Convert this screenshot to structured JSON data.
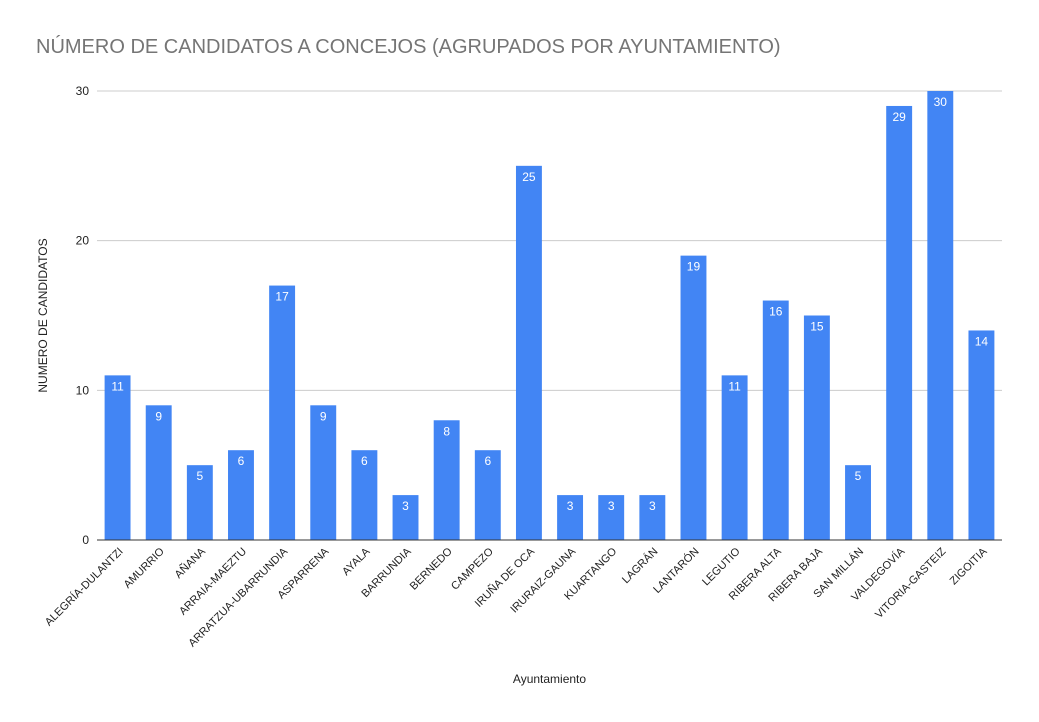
{
  "chart_data": {
    "type": "bar",
    "title": "NÚMERO DE CANDIDATOS A CONCEJOS (AGRUPADOS POR AYUNTAMIENTO)",
    "xlabel": "Ayuntamiento",
    "ylabel": "NUMERO DE CANDIDATOS",
    "ylim": [
      0,
      30
    ],
    "yticks": [
      0,
      10,
      20,
      30
    ],
    "grid": true,
    "bar_color": "#4285f4",
    "categories": [
      "ALEGRÍA-DULANTZI",
      "AMURRIO",
      "AÑANA",
      "ARRAIA-MAEZTU",
      "ARRATZUA-UBARRUNDIA",
      "ASPARRENA",
      "AYALA",
      "BARRUNDIA",
      "BERNEDO",
      "CAMPEZO",
      "IRUÑA DE OCA",
      "IRURAIZ-GAUNA",
      "KUARTANGO",
      "LAGRÁN",
      "LANTARÓN",
      "LEGUTIO",
      "RIBERA ALTA",
      "RIBERA BAJA",
      "SAN MILLÁN",
      "VALDEGOVÍA",
      "VITORIA-GASTEIZ",
      "ZIGOITIA"
    ],
    "values": [
      11,
      9,
      5,
      6,
      17,
      9,
      6,
      3,
      8,
      6,
      25,
      3,
      3,
      3,
      19,
      11,
      16,
      15,
      5,
      29,
      30,
      14
    ]
  }
}
